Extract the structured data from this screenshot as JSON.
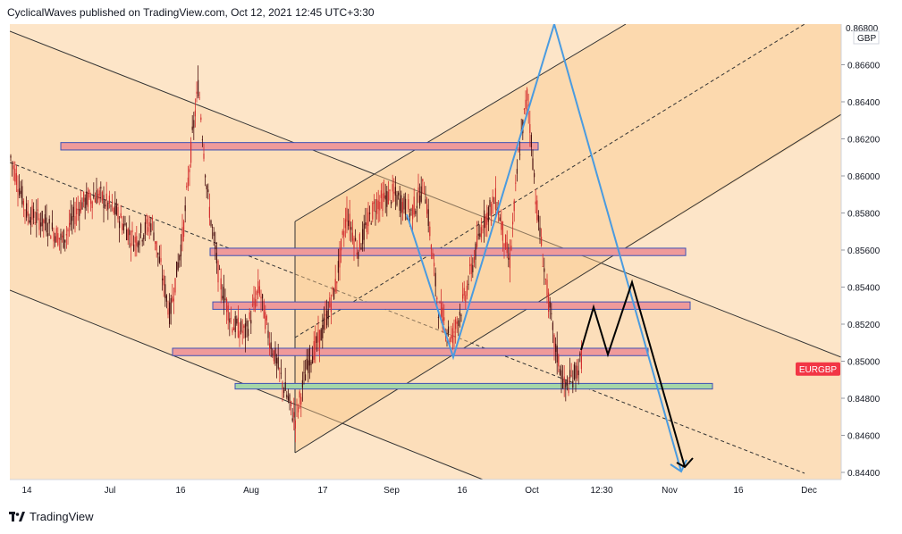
{
  "header": {
    "published_by": "CyclicalWaves published on TradingView.com, Oct 12, 2021 12:45 UTC+3:30"
  },
  "footer": {
    "brand": "TradingView",
    "logo_icon": "tradingview-logo-icon"
  },
  "chart_data": {
    "type": "candlestick",
    "symbol_badge": "EURGBP",
    "currency": "GBP",
    "y_axis": {
      "ticks": [
        "0.84400",
        "0.84600",
        "0.84800",
        "0.85000",
        "0.85200",
        "0.85400",
        "0.85600",
        "0.85800",
        "0.86000",
        "0.86200",
        "0.86400",
        "0.86600",
        "0.86800"
      ],
      "range": [
        0.8438,
        0.8683
      ]
    },
    "x_axis": {
      "ticks": [
        "14",
        "Jul",
        "16",
        "Aug",
        "17",
        "Sep",
        "16",
        "Oct",
        "12:30",
        "Nov",
        "16",
        "Dec"
      ]
    },
    "price_line": 0.8496,
    "levels": [
      {
        "kind": "resistance",
        "from": 0.8618,
        "to": 0.8614,
        "color": "#ef9a9a"
      },
      {
        "kind": "resistance",
        "from": 0.8561,
        "to": 0.8557,
        "color": "#ef9a9a"
      },
      {
        "kind": "resistance",
        "from": 0.8532,
        "to": 0.8528,
        "color": "#ef9a9a"
      },
      {
        "kind": "resistance",
        "from": 0.8507,
        "to": 0.8503,
        "color": "#ef9a9a"
      },
      {
        "kind": "support",
        "from": 0.8488,
        "to": 0.8485,
        "color": "#a5d6a7"
      }
    ],
    "colors": {
      "up": "#26a69a",
      "down": "#ef5350",
      "candle": "#d32f2f",
      "channel_fill": "#fde3c4",
      "forecast_blue": "#4a9be0",
      "forecast_black": "#000000",
      "badge_bg": "#f23645"
    }
  }
}
